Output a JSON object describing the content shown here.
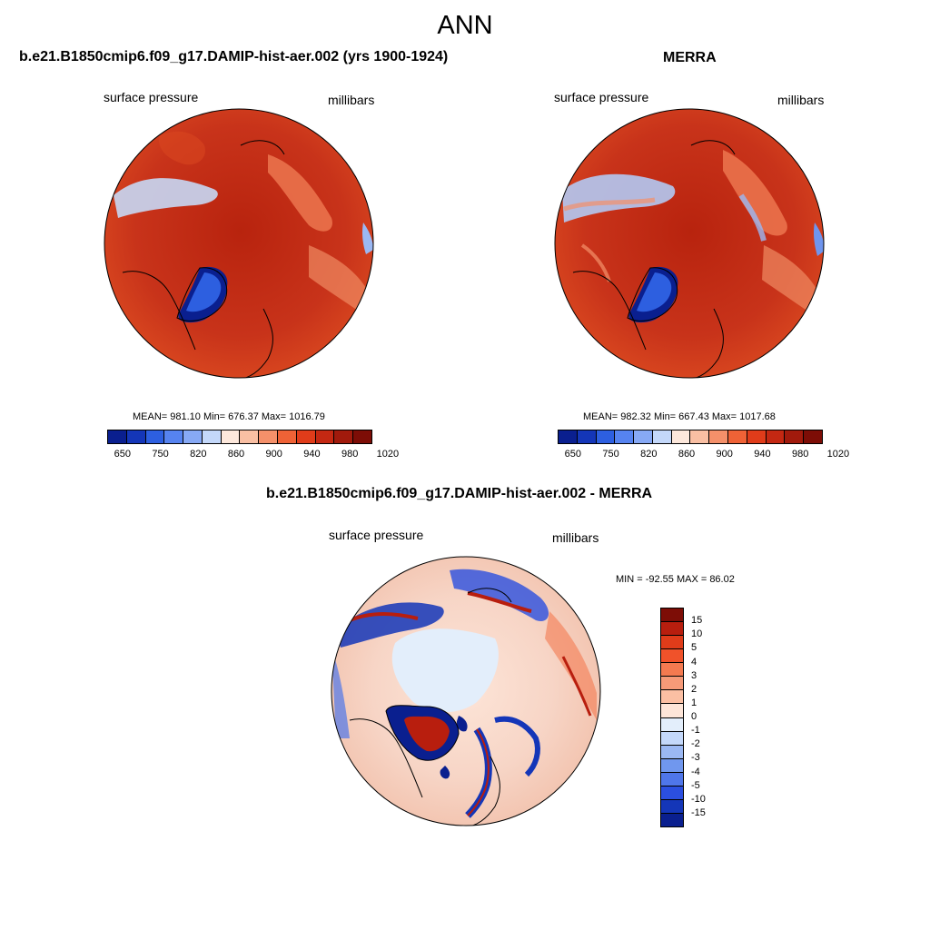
{
  "title": "ANN",
  "panels": [
    {
      "title": "b.e21.B1850cmip6.f09_g17.DAMIP-hist-aer.002 (yrs 1900-1924)",
      "left_label": "surface pressure",
      "right_label": "millibars",
      "stats": "MEAN= 981.10  Min= 676.37  Max= 1016.79"
    },
    {
      "title": "MERRA",
      "left_label": "surface pressure",
      "right_label": "millibars",
      "stats": "MEAN= 982.32  Min= 667.43  Max= 1017.68"
    }
  ],
  "diff_panel": {
    "title": "b.e21.B1850cmip6.f09_g17.DAMIP-hist-aer.002 - MERRA",
    "left_label": "surface pressure",
    "right_label": "millibars",
    "stats": "MIN = -92.55 MAX =  86.02"
  },
  "colorbar_main": {
    "ticks": [
      "650",
      "750",
      "820",
      "860",
      "900",
      "940",
      "980",
      "1020"
    ],
    "colors": [
      "#0a1f8f",
      "#1436b8",
      "#2d5fe0",
      "#5683f0",
      "#87a9f5",
      "#c4d8fa",
      "#fde8dc",
      "#f9bfa3",
      "#f4906a",
      "#ef6236",
      "#e03c1a",
      "#c42812",
      "#a11a0c",
      "#7d0d06"
    ]
  },
  "colorbar_diff": {
    "ticks": [
      "15",
      "10",
      "5",
      "4",
      "3",
      "2",
      "1",
      "0",
      "-1",
      "-2",
      "-3",
      "-4",
      "-5",
      "-10",
      "-15"
    ],
    "colors": [
      "#7d0d06",
      "#b81e0e",
      "#e03c1a",
      "#f0522a",
      "#f47a50",
      "#f69a78",
      "#fbbfa3",
      "#fde5d8",
      "#e3eefb",
      "#c4d8fa",
      "#9bb8f3",
      "#7097ee",
      "#4f76ea",
      "#2b4fe0",
      "#1436b8",
      "#0a1f8f"
    ]
  }
}
